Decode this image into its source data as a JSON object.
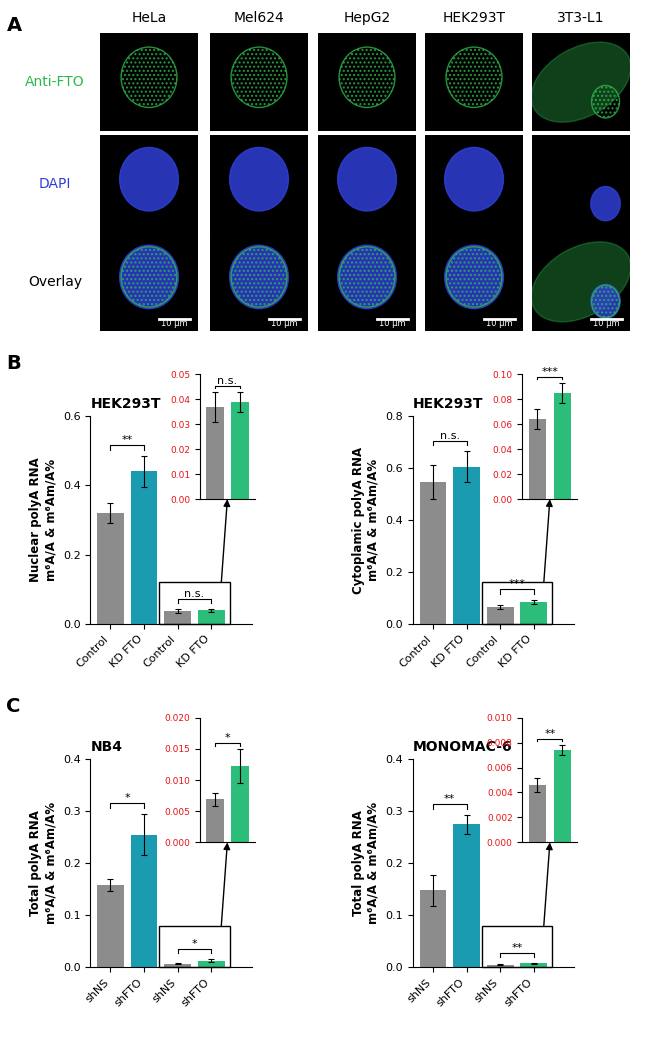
{
  "panel_a": {
    "label": "A",
    "columns": [
      "HeLa",
      "Mel624",
      "HepG2",
      "HEK293T",
      "3T3-L1"
    ],
    "rows": [
      {
        "label": "Anti-FTO",
        "color": "#2db84d"
      },
      {
        "label": "DAPI",
        "color": "#2f3fd6"
      },
      {
        "label": "Overlay",
        "color": "#000000"
      }
    ],
    "scale_bar": "10 μm"
  },
  "chart_data": [
    {
      "type": "bar",
      "panel_label": "B",
      "title": "HEK293T",
      "y_label": "Nuclear polyA RNA\nm⁶A/A & m⁶Am/A%",
      "categories": [
        "Control",
        "KD FTO",
        "Control",
        "KD FTO"
      ],
      "values": [
        0.32,
        0.44,
        0.037,
        0.039
      ],
      "errors": [
        0.03,
        0.045,
        0.006,
        0.004
      ],
      "colors": [
        "#8c8c8c",
        "#1a9bb0",
        "#8c8c8c",
        "#2dbd7a"
      ],
      "ylim": [
        0,
        0.6
      ],
      "yticks": [
        {
          "value": 0,
          "label": "0.0"
        },
        0.2,
        0.4,
        0.6
      ],
      "significance": [
        {
          "bars": [
            0,
            1
          ],
          "text": "**"
        },
        {
          "bars": [
            2,
            3
          ],
          "text": "n.s."
        }
      ],
      "inset": {
        "bars": [
          2,
          3
        ],
        "ylim": [
          0,
          0.05
        ],
        "yticks": [
          {
            "value": 0,
            "label": "0.00"
          },
          0.01,
          0.02,
          0.03,
          0.04,
          0.05
        ],
        "significance": "n.s.",
        "color": "#e8141a"
      }
    },
    {
      "type": "bar",
      "title": "HEK293T",
      "y_label": "Cytoplamic polyA RNA\nm⁶A/A & m⁶Am/A%",
      "categories": [
        "Control",
        "KD FTO",
        "Control",
        "KD FTO"
      ],
      "values": [
        0.545,
        0.605,
        0.064,
        0.085
      ],
      "errors": [
        0.065,
        0.06,
        0.008,
        0.008
      ],
      "colors": [
        "#8c8c8c",
        "#1a9bb0",
        "#8c8c8c",
        "#2dbd7a"
      ],
      "ylim": [
        0,
        0.8
      ],
      "yticks": [
        {
          "value": 0,
          "label": "0.0"
        },
        0.2,
        0.4,
        0.6,
        0.8
      ],
      "significance": [
        {
          "bars": [
            0,
            1
          ],
          "text": "n.s."
        },
        {
          "bars": [
            2,
            3
          ],
          "text": "***"
        }
      ],
      "inset": {
        "bars": [
          2,
          3
        ],
        "ylim": [
          0,
          0.1
        ],
        "yticks": [
          {
            "value": 0,
            "label": "0.00"
          },
          0.02,
          0.04,
          0.06,
          0.08,
          {
            "value": 0.1,
            "label": "0.10"
          }
        ],
        "significance": "***",
        "color": "#e8141a"
      }
    },
    {
      "type": "bar",
      "panel_label": "C",
      "title": "NB4",
      "y_label": "Total polyA RNA\nm⁶A/A & m⁶Am/A%",
      "categories": [
        "shNS",
        "shFTO",
        "shNS",
        "shFTO"
      ],
      "values": [
        0.158,
        0.255,
        0.0069,
        0.0122
      ],
      "errors": [
        0.012,
        0.04,
        0.001,
        0.0027
      ],
      "colors": [
        "#8c8c8c",
        "#1a9bb0",
        "#8c8c8c",
        "#2dbd7a"
      ],
      "ylim": [
        0,
        0.4
      ],
      "yticks": [
        {
          "value": 0,
          "label": "0.0"
        },
        0.1,
        0.2,
        0.3,
        0.4
      ],
      "significance": [
        {
          "bars": [
            0,
            1
          ],
          "text": "*"
        },
        {
          "bars": [
            2,
            3
          ],
          "text": "*"
        }
      ],
      "inset": {
        "bars": [
          2,
          3
        ],
        "ylim": [
          0,
          0.02
        ],
        "yticks": [
          {
            "value": 0,
            "label": "0.000"
          },
          0.005,
          {
            "value": 0.01,
            "label": "0.010"
          },
          0.015,
          {
            "value": 0.02,
            "label": "0.020"
          }
        ],
        "significance": "*",
        "color": "#e8141a"
      }
    },
    {
      "type": "bar",
      "title": "MONOMAC-6",
      "y_label": "Total polyA RNA\nm⁶A/A & m⁶Am/A%",
      "categories": [
        "shNS",
        "shFTO",
        "shNS",
        "shFTO"
      ],
      "values": [
        0.148,
        0.275,
        0.0046,
        0.0074
      ],
      "errors": [
        0.03,
        0.018,
        0.0006,
        0.0004
      ],
      "colors": [
        "#8c8c8c",
        "#1a9bb0",
        "#8c8c8c",
        "#2dbd7a"
      ],
      "ylim": [
        0,
        0.4
      ],
      "yticks": [
        {
          "value": 0,
          "label": "0.0"
        },
        0.1,
        0.2,
        0.3,
        0.4
      ],
      "significance": [
        {
          "bars": [
            0,
            1
          ],
          "text": "**"
        },
        {
          "bars": [
            2,
            3
          ],
          "text": "**"
        }
      ],
      "inset": {
        "bars": [
          2,
          3
        ],
        "ylim": [
          0,
          0.01
        ],
        "yticks": [
          {
            "value": 0,
            "label": "0.000"
          },
          0.002,
          0.004,
          0.006,
          0.008,
          {
            "value": 0.01,
            "label": "0.010"
          }
        ],
        "significance": "**",
        "color": "#e8141a"
      }
    }
  ]
}
